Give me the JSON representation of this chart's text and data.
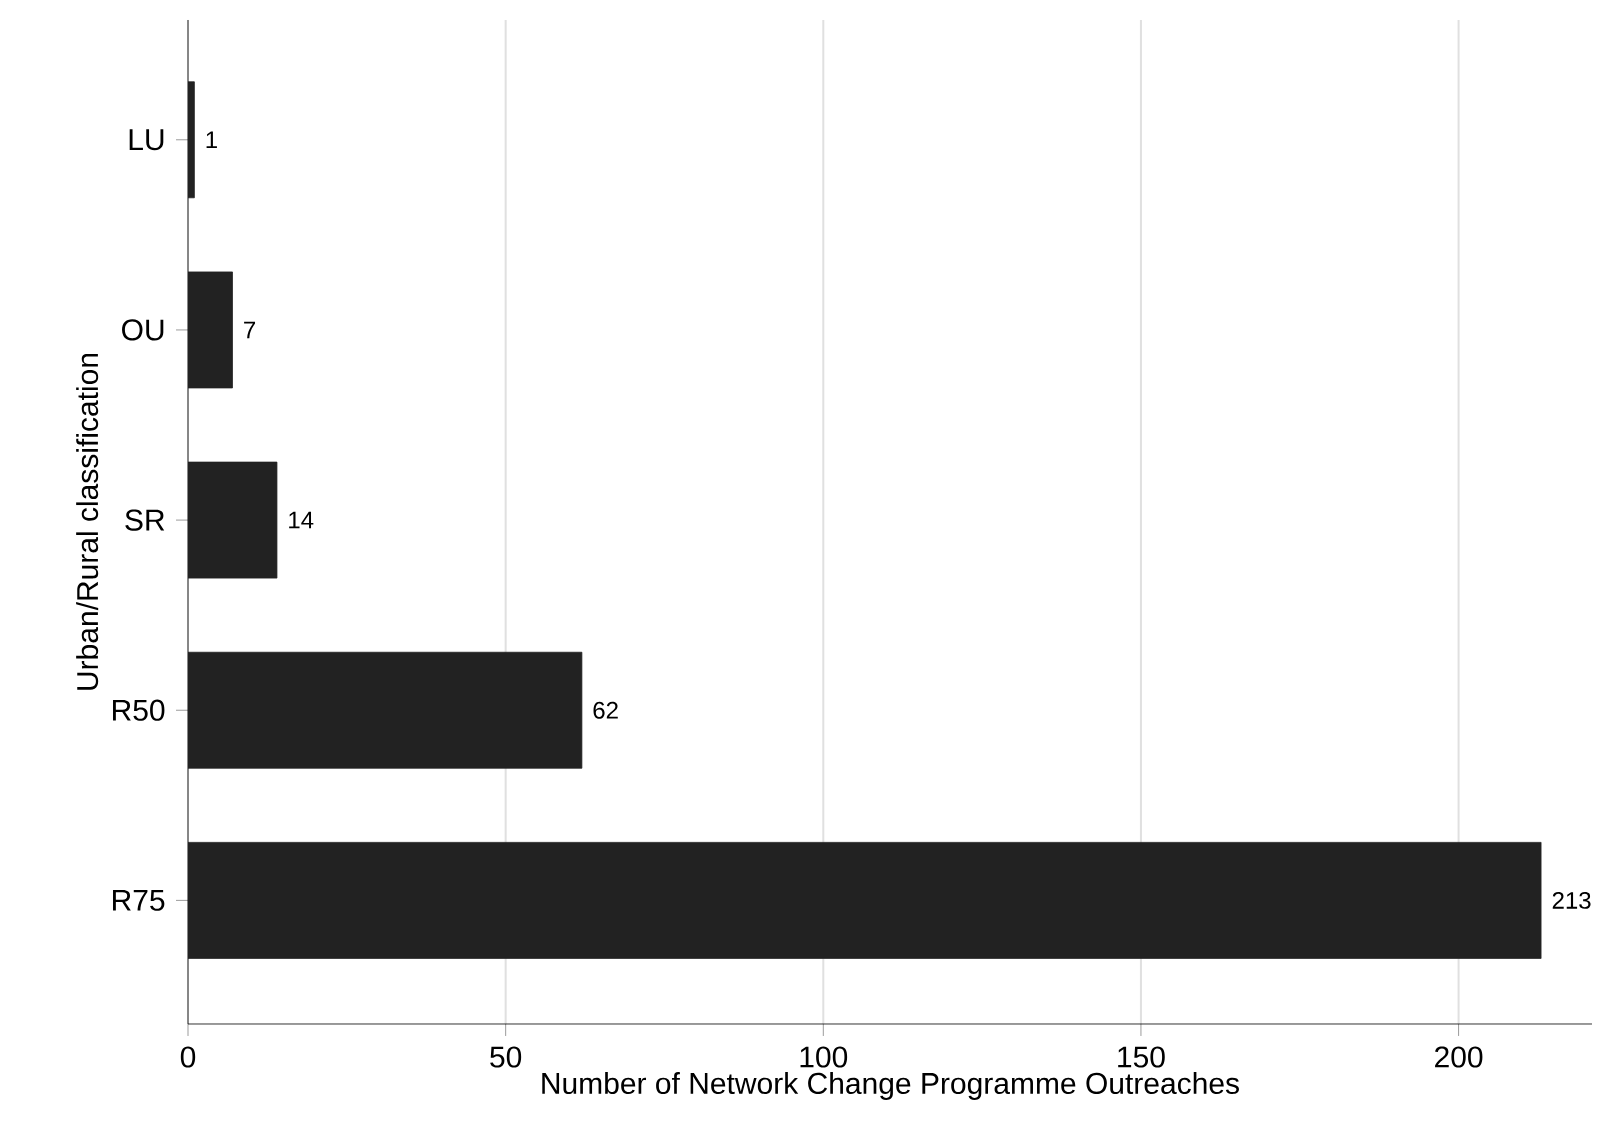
{
  "chart_data": {
    "type": "bar",
    "orientation": "horizontal",
    "xlabel": "Number of Network Change Programme Outreaches",
    "ylabel": "Urban/Rural classification",
    "categories": [
      "LU",
      "OU",
      "SR",
      "R50",
      "R75"
    ],
    "values": [
      1,
      7,
      14,
      62,
      213
    ],
    "color": "#222222",
    "xlim": [
      0,
      221
    ],
    "xticks": [
      0,
      50,
      100,
      150,
      200
    ],
    "grid": "x",
    "data_labels": true
  }
}
